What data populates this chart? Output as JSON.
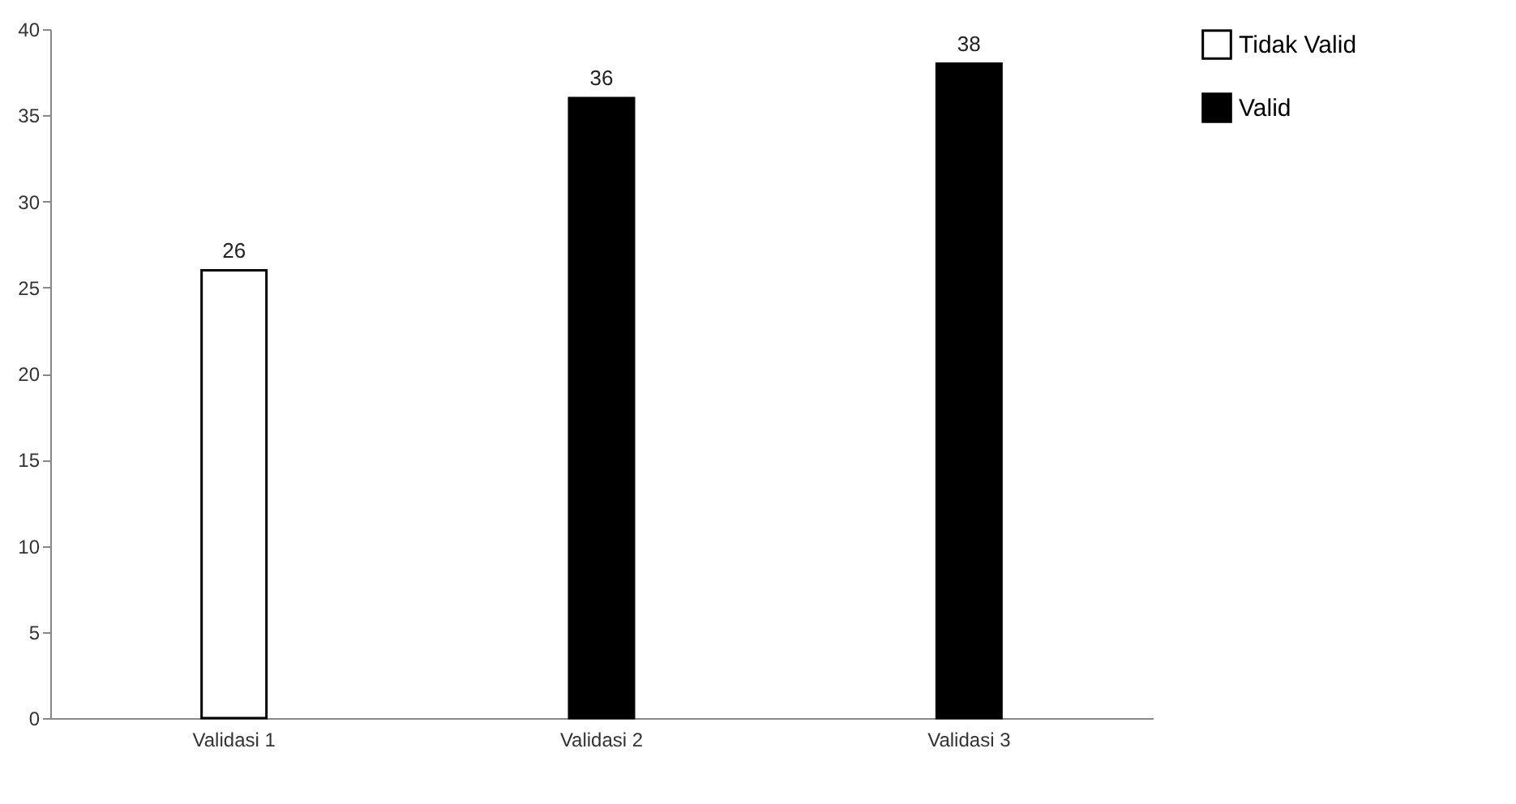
{
  "chart_data": {
    "type": "bar",
    "categories": [
      "Validasi 1",
      "Validasi 2",
      "Validasi 3"
    ],
    "series": [
      {
        "name": "Tidak Valid",
        "color": "#ffffff",
        "values": [
          26,
          null,
          null
        ]
      },
      {
        "name": "Valid",
        "color": "#000000",
        "values": [
          null,
          36,
          38
        ]
      }
    ],
    "ylim": [
      0,
      40
    ],
    "yticks": [
      0,
      5,
      10,
      15,
      20,
      25,
      30,
      35,
      40
    ],
    "grid": false,
    "legend": "right",
    "data_labels": true
  }
}
